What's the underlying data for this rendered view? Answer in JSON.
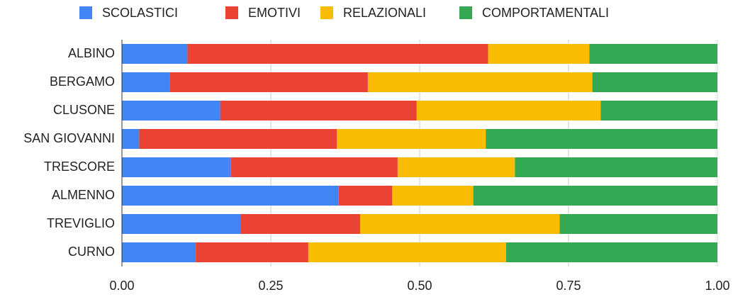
{
  "chart_data": {
    "type": "stacked_bar_horizontal",
    "categories": [
      "ALBINO",
      "BERGAMO",
      "CLUSONE",
      "SAN GIOVANNI",
      "TRESCORE",
      "ALMENNO",
      "TREVIGLIO",
      "CURNO"
    ],
    "series": [
      {
        "name": "SCOLASTICI",
        "color": "#4285f4",
        "values": [
          0.11,
          0.08,
          0.165,
          0.029,
          0.183,
          0.364,
          0.2,
          0.124
        ]
      },
      {
        "name": "EMOTIVI",
        "color": "#ea4335",
        "values": [
          0.505,
          0.333,
          0.33,
          0.332,
          0.28,
          0.09,
          0.2,
          0.189
        ]
      },
      {
        "name": "RELAZIONALI",
        "color": "#fbbc04",
        "values": [
          0.17,
          0.377,
          0.309,
          0.25,
          0.197,
          0.136,
          0.335,
          0.332
        ]
      },
      {
        "name": "COMPORTAMENTALI",
        "color": "#34a853",
        "values": [
          0.215,
          0.21,
          0.196,
          0.389,
          0.34,
          0.41,
          0.265,
          0.355
        ]
      }
    ],
    "xlim": [
      0,
      1
    ],
    "xticks": [
      {
        "value": 0,
        "label": "0.00"
      },
      {
        "value": 0.25,
        "label": "0.25"
      },
      {
        "value": 0.5,
        "label": "0.50"
      },
      {
        "value": 0.75,
        "label": "0.75"
      },
      {
        "value": 1,
        "label": "1.00"
      }
    ],
    "grid": true,
    "legend": "top"
  }
}
